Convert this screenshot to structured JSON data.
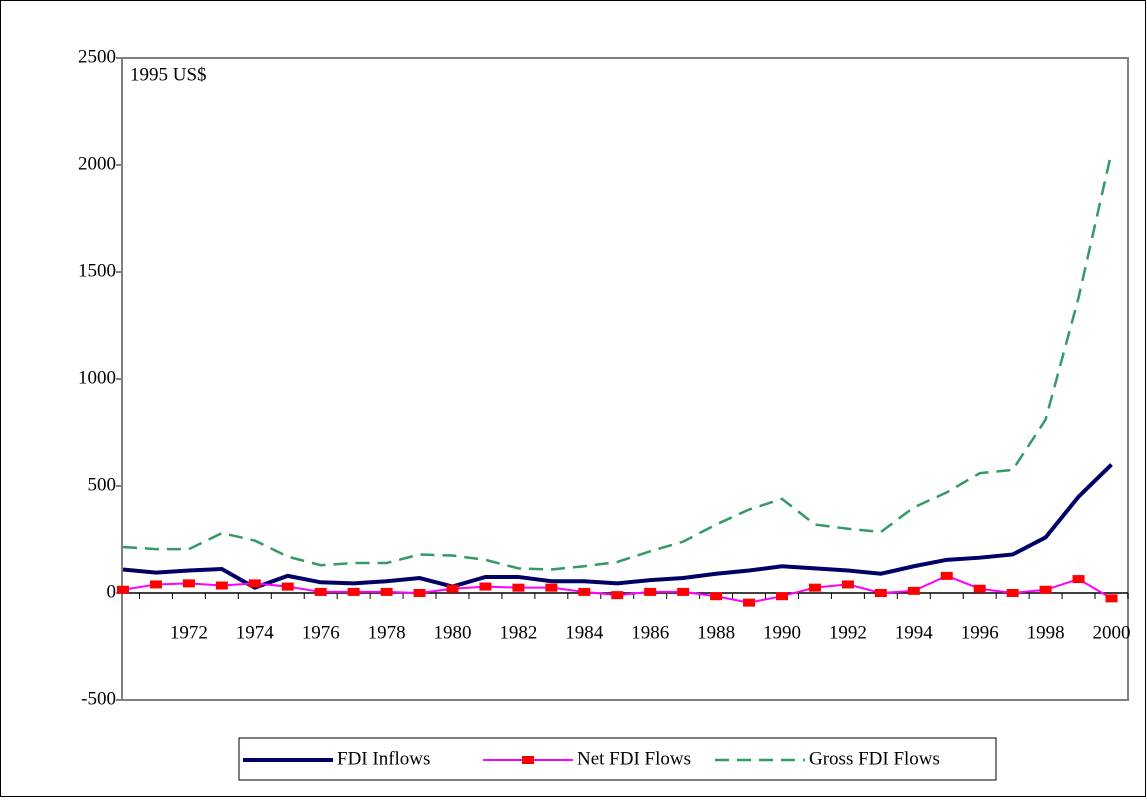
{
  "chart_data": {
    "type": "line",
    "annotation": "1995 US$",
    "categories": [
      null,
      null,
      "1972",
      null,
      "1974",
      null,
      "1976",
      null,
      "1978",
      null,
      "1980",
      null,
      "1982",
      null,
      "1984",
      null,
      "1986",
      null,
      "1988",
      null,
      "1990",
      null,
      "1992",
      null,
      "1994",
      null,
      "1996",
      null,
      "1998",
      null,
      "2000"
    ],
    "series": [
      {
        "name": "FDI Inflows",
        "color": "#000066",
        "dash": "solid",
        "values": [
          110,
          95,
          105,
          112,
          25,
          80,
          50,
          45,
          55,
          70,
          30,
          75,
          75,
          55,
          55,
          45,
          60,
          70,
          90,
          105,
          125,
          115,
          105,
          90,
          125,
          155,
          165,
          180,
          260,
          450,
          600
        ]
      },
      {
        "name": "Net FDI Flows",
        "color": "#ff00ff",
        "marker": "square",
        "marker_color": "#ff0000",
        "dash": "solid",
        "values": [
          15,
          40,
          45,
          35,
          45,
          30,
          5,
          5,
          5,
          0,
          20,
          30,
          25,
          25,
          5,
          -10,
          5,
          5,
          -15,
          -45,
          -15,
          25,
          40,
          0,
          10,
          80,
          20,
          0,
          15,
          65,
          -25
        ]
      },
      {
        "name": "Gross FDI Flows",
        "color": "#339966",
        "dash": "dashed",
        "values": [
          215,
          205,
          205,
          280,
          245,
          170,
          130,
          140,
          140,
          180,
          175,
          155,
          115,
          110,
          125,
          145,
          195,
          240,
          320,
          390,
          440,
          320,
          300,
          285,
          400,
          470,
          560,
          575,
          810,
          1380,
          2060
        ]
      }
    ],
    "ylim": [
      -500,
      2500
    ],
    "yticks": [
      -500,
      0,
      500,
      1000,
      1500,
      2000,
      2500
    ],
    "grid": false,
    "legend": "bottom"
  }
}
